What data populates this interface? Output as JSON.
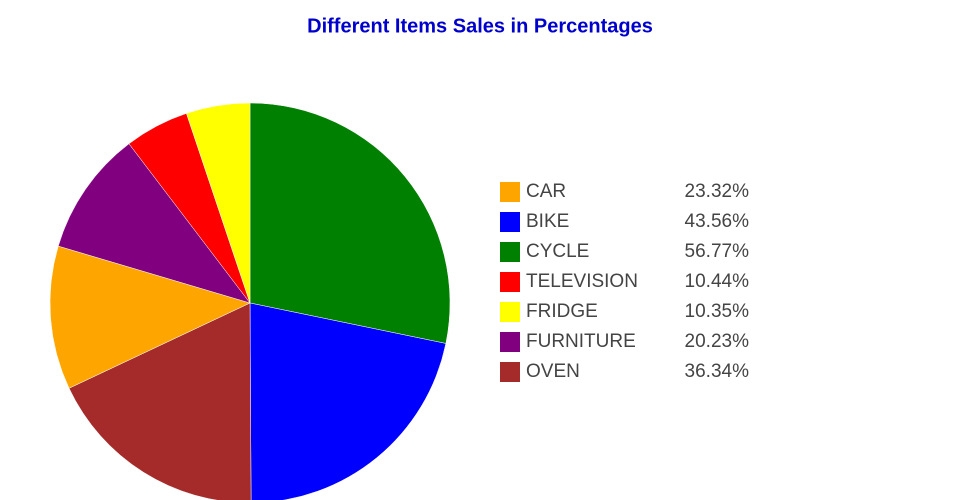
{
  "chart_data": {
    "type": "pie",
    "title": "Different Items Sales in Percentages",
    "categories": [
      "CAR",
      "BIKE",
      "CYCLE",
      "TELEVISION",
      "FRIDGE",
      "FURNITURE",
      "OVEN"
    ],
    "values": [
      23.32,
      43.56,
      56.77,
      10.44,
      10.35,
      20.23,
      36.34
    ],
    "value_labels": [
      "23.32%",
      "43.56%",
      "56.77%",
      "10.44%",
      "10.35%",
      "20.23%",
      "36.34%"
    ],
    "colors": [
      "#ffa500",
      "#0000ff",
      "#008000",
      "#ff0000",
      "#ffff00",
      "#800080",
      "#a52a2a"
    ],
    "legend": "right"
  }
}
